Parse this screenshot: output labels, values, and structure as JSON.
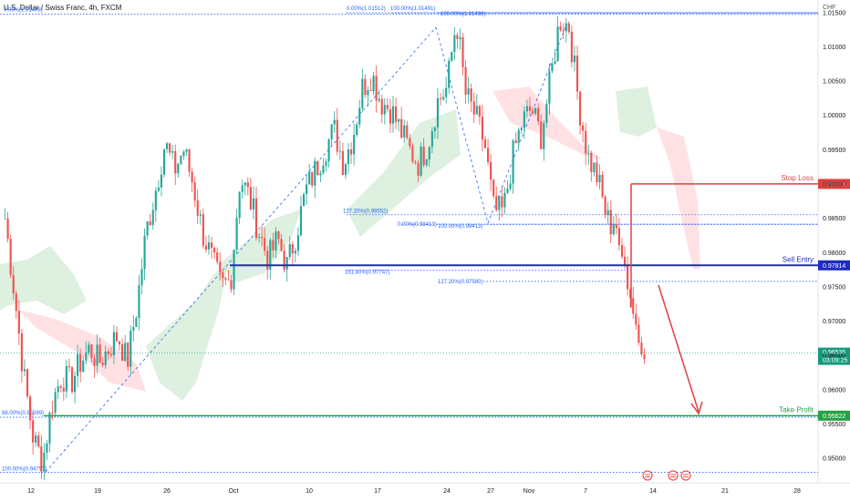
{
  "header": {
    "title": "U.S. Dollar / Swiss Franc, 4h, FXCM",
    "currency": "CHF"
  },
  "chart_data": {
    "type": "candlestick",
    "symbol": "USDCHF",
    "timeframe": "4h",
    "ylim": [
      0.9475,
      1.0155
    ],
    "x_ticks": [
      "12",
      "19",
      "26",
      "Oct",
      "10",
      "17",
      "24",
      "27",
      "Nov",
      "7",
      "14",
      "21",
      "28"
    ],
    "y_ticks": [
      "0.95000",
      "0.95500",
      "0.96000",
      "0.96500",
      "0.97000",
      "0.97500",
      "0.98000",
      "0.98500",
      "0.99000",
      "0.99500",
      "1.00000",
      "1.00500",
      "1.01000",
      "1.01500"
    ],
    "close_path": [
      0.985,
      0.974,
      0.962,
      0.953,
      0.9495,
      0.958,
      0.962,
      0.961,
      0.964,
      0.966,
      0.964,
      0.966,
      0.968,
      0.964,
      0.972,
      0.983,
      0.989,
      0.996,
      0.992,
      0.995,
      0.99,
      0.983,
      0.979,
      0.975,
      0.976,
      0.991,
      0.988,
      0.983,
      0.979,
      0.982,
      0.978,
      0.983,
      0.989,
      0.992,
      0.995,
      0.998,
      0.993,
      0.997,
      1.004,
      1.006,
      1.002,
      1.001,
      0.998,
      0.995,
      0.993,
      0.996,
      1.002,
      1.004,
      1.014,
      1.003,
      1.0,
      0.996,
      0.986,
      0.986,
      0.994,
      0.999,
      1.001,
      0.997,
      1.005,
      1.014,
      1.013,
      1.002,
      0.994,
      0.991,
      0.985,
      0.983,
      0.986,
      0.965,
      0.964
    ],
    "zones": [
      {
        "label": "Stop Loss",
        "value": "0.99001",
        "color": "#e0403f"
      },
      {
        "label": "Sell Entry",
        "value": "0.97814",
        "color": "#1f2cc0"
      },
      {
        "label": "Take Profit",
        "value": "0.95622",
        "color": "#25a244"
      }
    ],
    "current_price": {
      "value": "0.96535",
      "countdown": "03:09:25",
      "color": "#179a7c"
    },
    "fib_labels": [
      "0.00%(1.01478)",
      "0.00%(1.01512)",
      "100.00%(1.01491)",
      "100.00%(1.01496)",
      "127.20%(0.98552)",
      "0.00%(0.98413)",
      "100.00%(0.98413)",
      "161.80%(0.97747)",
      "127.20%(0.97580)",
      "88.00%(0.95599)",
      "100.00%(0.94797)"
    ],
    "event_markers": 3,
    "grid": false
  }
}
